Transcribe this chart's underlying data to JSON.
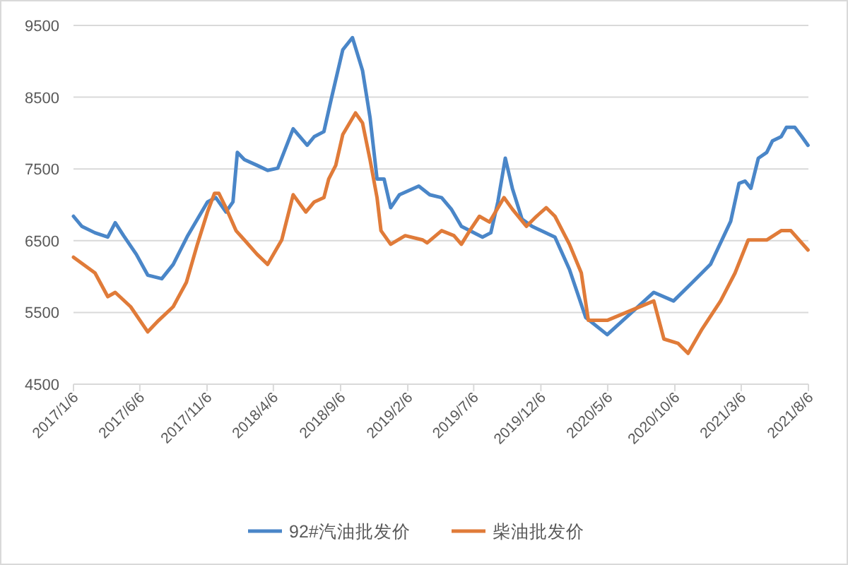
{
  "chart_data": {
    "type": "line",
    "xlim": [
      "2017-01-06",
      "2021-08-06"
    ],
    "xticks": [
      {
        "value": "2017-01-06",
        "label": "2017/1/6"
      },
      {
        "value": "2017-06-06",
        "label": "2017/6/6"
      },
      {
        "value": "2017-11-06",
        "label": "2017/11/6"
      },
      {
        "value": "2018-04-06",
        "label": "2018/4/6"
      },
      {
        "value": "2018-09-06",
        "label": "2018/9/6"
      },
      {
        "value": "2019-02-06",
        "label": "2019/2/6"
      },
      {
        "value": "2019-07-06",
        "label": "2019/7/6"
      },
      {
        "value": "2019-12-06",
        "label": "2019/12/6"
      },
      {
        "value": "2020-05-06",
        "label": "2020/5/6"
      },
      {
        "value": "2020-10-06",
        "label": "2020/10/6"
      },
      {
        "value": "2021-03-06",
        "label": "2021/3/6"
      },
      {
        "value": "2021-08-06",
        "label": "2021/8/6"
      }
    ],
    "ylim": [
      4500,
      9500
    ],
    "yticks": [
      4500,
      5500,
      6500,
      7500,
      8500,
      9500
    ],
    "grid": "y",
    "legend": "bottom",
    "marker": "none",
    "line_style": "solid",
    "series": [
      {
        "name": "92#汽油批发价",
        "color": "#4a86c8",
        "x": [
          "2017-01-06",
          "2017-01-25",
          "2017-02-24",
          "2017-03-25",
          "2017-04-11",
          "2017-04-30",
          "2017-05-29",
          "2017-06-24",
          "2017-07-26",
          "2017-08-21",
          "2017-09-23",
          "2017-11-07",
          "2017-11-26",
          "2017-12-19",
          "2018-01-04",
          "2018-01-14",
          "2018-01-30",
          "2018-02-28",
          "2018-03-24",
          "2018-04-16",
          "2018-05-21",
          "2018-06-22",
          "2018-07-08",
          "2018-07-30",
          "2018-08-16",
          "2018-09-11",
          "2018-10-03",
          "2018-10-26",
          "2018-11-12",
          "2018-11-28",
          "2018-12-14",
          "2018-12-29",
          "2019-01-18",
          "2019-03-03",
          "2019-03-28",
          "2019-04-24",
          "2019-05-16",
          "2019-06-08",
          "2019-06-27",
          "2019-07-26",
          "2019-08-14",
          "2019-08-30",
          "2019-09-16",
          "2019-10-02",
          "2019-10-24",
          "2019-11-16",
          "2020-01-07",
          "2020-02-09",
          "2020-03-17",
          "2020-05-05",
          "2020-08-19",
          "2020-10-03",
          "2020-11-15",
          "2020-12-26",
          "2021-02-10",
          "2021-03-01",
          "2021-03-15",
          "2021-03-28",
          "2021-04-14",
          "2021-05-03",
          "2021-05-16",
          "2021-06-05",
          "2021-06-17",
          "2021-07-06",
          "2021-07-22",
          "2021-08-05"
        ],
        "values": [
          6840,
          6700,
          6610,
          6550,
          6750,
          6570,
          6310,
          6020,
          5970,
          6170,
          6570,
          7040,
          7100,
          6900,
          7040,
          7730,
          7630,
          7550,
          7480,
          7510,
          8060,
          7830,
          7950,
          8020,
          8480,
          9160,
          9330,
          8870,
          8220,
          7360,
          7360,
          6960,
          7140,
          7260,
          7140,
          7100,
          6940,
          6700,
          6640,
          6550,
          6610,
          7040,
          7650,
          7230,
          6800,
          6700,
          6550,
          6100,
          5430,
          5190,
          5780,
          5660,
          5920,
          6170,
          6770,
          7300,
          7330,
          7230,
          7650,
          7730,
          7890,
          7950,
          8080,
          8080,
          7950,
          7830
        ]
      },
      {
        "name": "柴油批发价",
        "color": "#e07b39",
        "x": [
          "2017-01-06",
          "2017-02-24",
          "2017-03-25",
          "2017-04-11",
          "2017-05-16",
          "2017-06-24",
          "2017-07-19",
          "2017-08-21",
          "2017-09-20",
          "2017-10-15",
          "2017-11-07",
          "2017-11-23",
          "2017-12-03",
          "2017-12-19",
          "2018-01-11",
          "2018-01-30",
          "2018-02-28",
          "2018-03-24",
          "2018-04-25",
          "2018-05-21",
          "2018-06-19",
          "2018-07-08",
          "2018-07-30",
          "2018-08-10",
          "2018-08-26",
          "2018-09-11",
          "2018-10-10",
          "2018-10-26",
          "2018-11-12",
          "2018-11-28",
          "2018-12-07",
          "2018-12-29",
          "2019-01-31",
          "2019-03-12",
          "2019-03-22",
          "2019-04-24",
          "2019-05-22",
          "2019-06-08",
          "2019-06-27",
          "2019-07-19",
          "2019-08-11",
          "2019-09-13",
          "2019-10-02",
          "2019-11-03",
          "2019-11-26",
          "2019-12-18",
          "2020-01-07",
          "2020-02-09",
          "2020-03-07",
          "2020-03-23",
          "2020-05-05",
          "2020-08-19",
          "2020-09-11",
          "2020-10-13",
          "2020-11-05",
          "2020-12-07",
          "2021-01-18",
          "2021-02-20",
          "2021-03-22",
          "2021-05-03",
          "2021-06-05",
          "2021-06-27",
          "2021-08-05"
        ],
        "values": [
          6270,
          6050,
          5720,
          5780,
          5580,
          5230,
          5390,
          5580,
          5920,
          6450,
          6900,
          7160,
          7160,
          6960,
          6640,
          6510,
          6310,
          6170,
          6510,
          7140,
          6900,
          7040,
          7100,
          7360,
          7550,
          7980,
          8280,
          8140,
          7630,
          7100,
          6640,
          6450,
          6570,
          6510,
          6470,
          6640,
          6570,
          6450,
          6640,
          6840,
          6760,
          7100,
          6940,
          6700,
          6840,
          6960,
          6840,
          6450,
          6050,
          5390,
          5390,
          5660,
          5130,
          5070,
          4930,
          5270,
          5660,
          6050,
          6510,
          6510,
          6640,
          6640,
          6370
        ]
      }
    ]
  }
}
